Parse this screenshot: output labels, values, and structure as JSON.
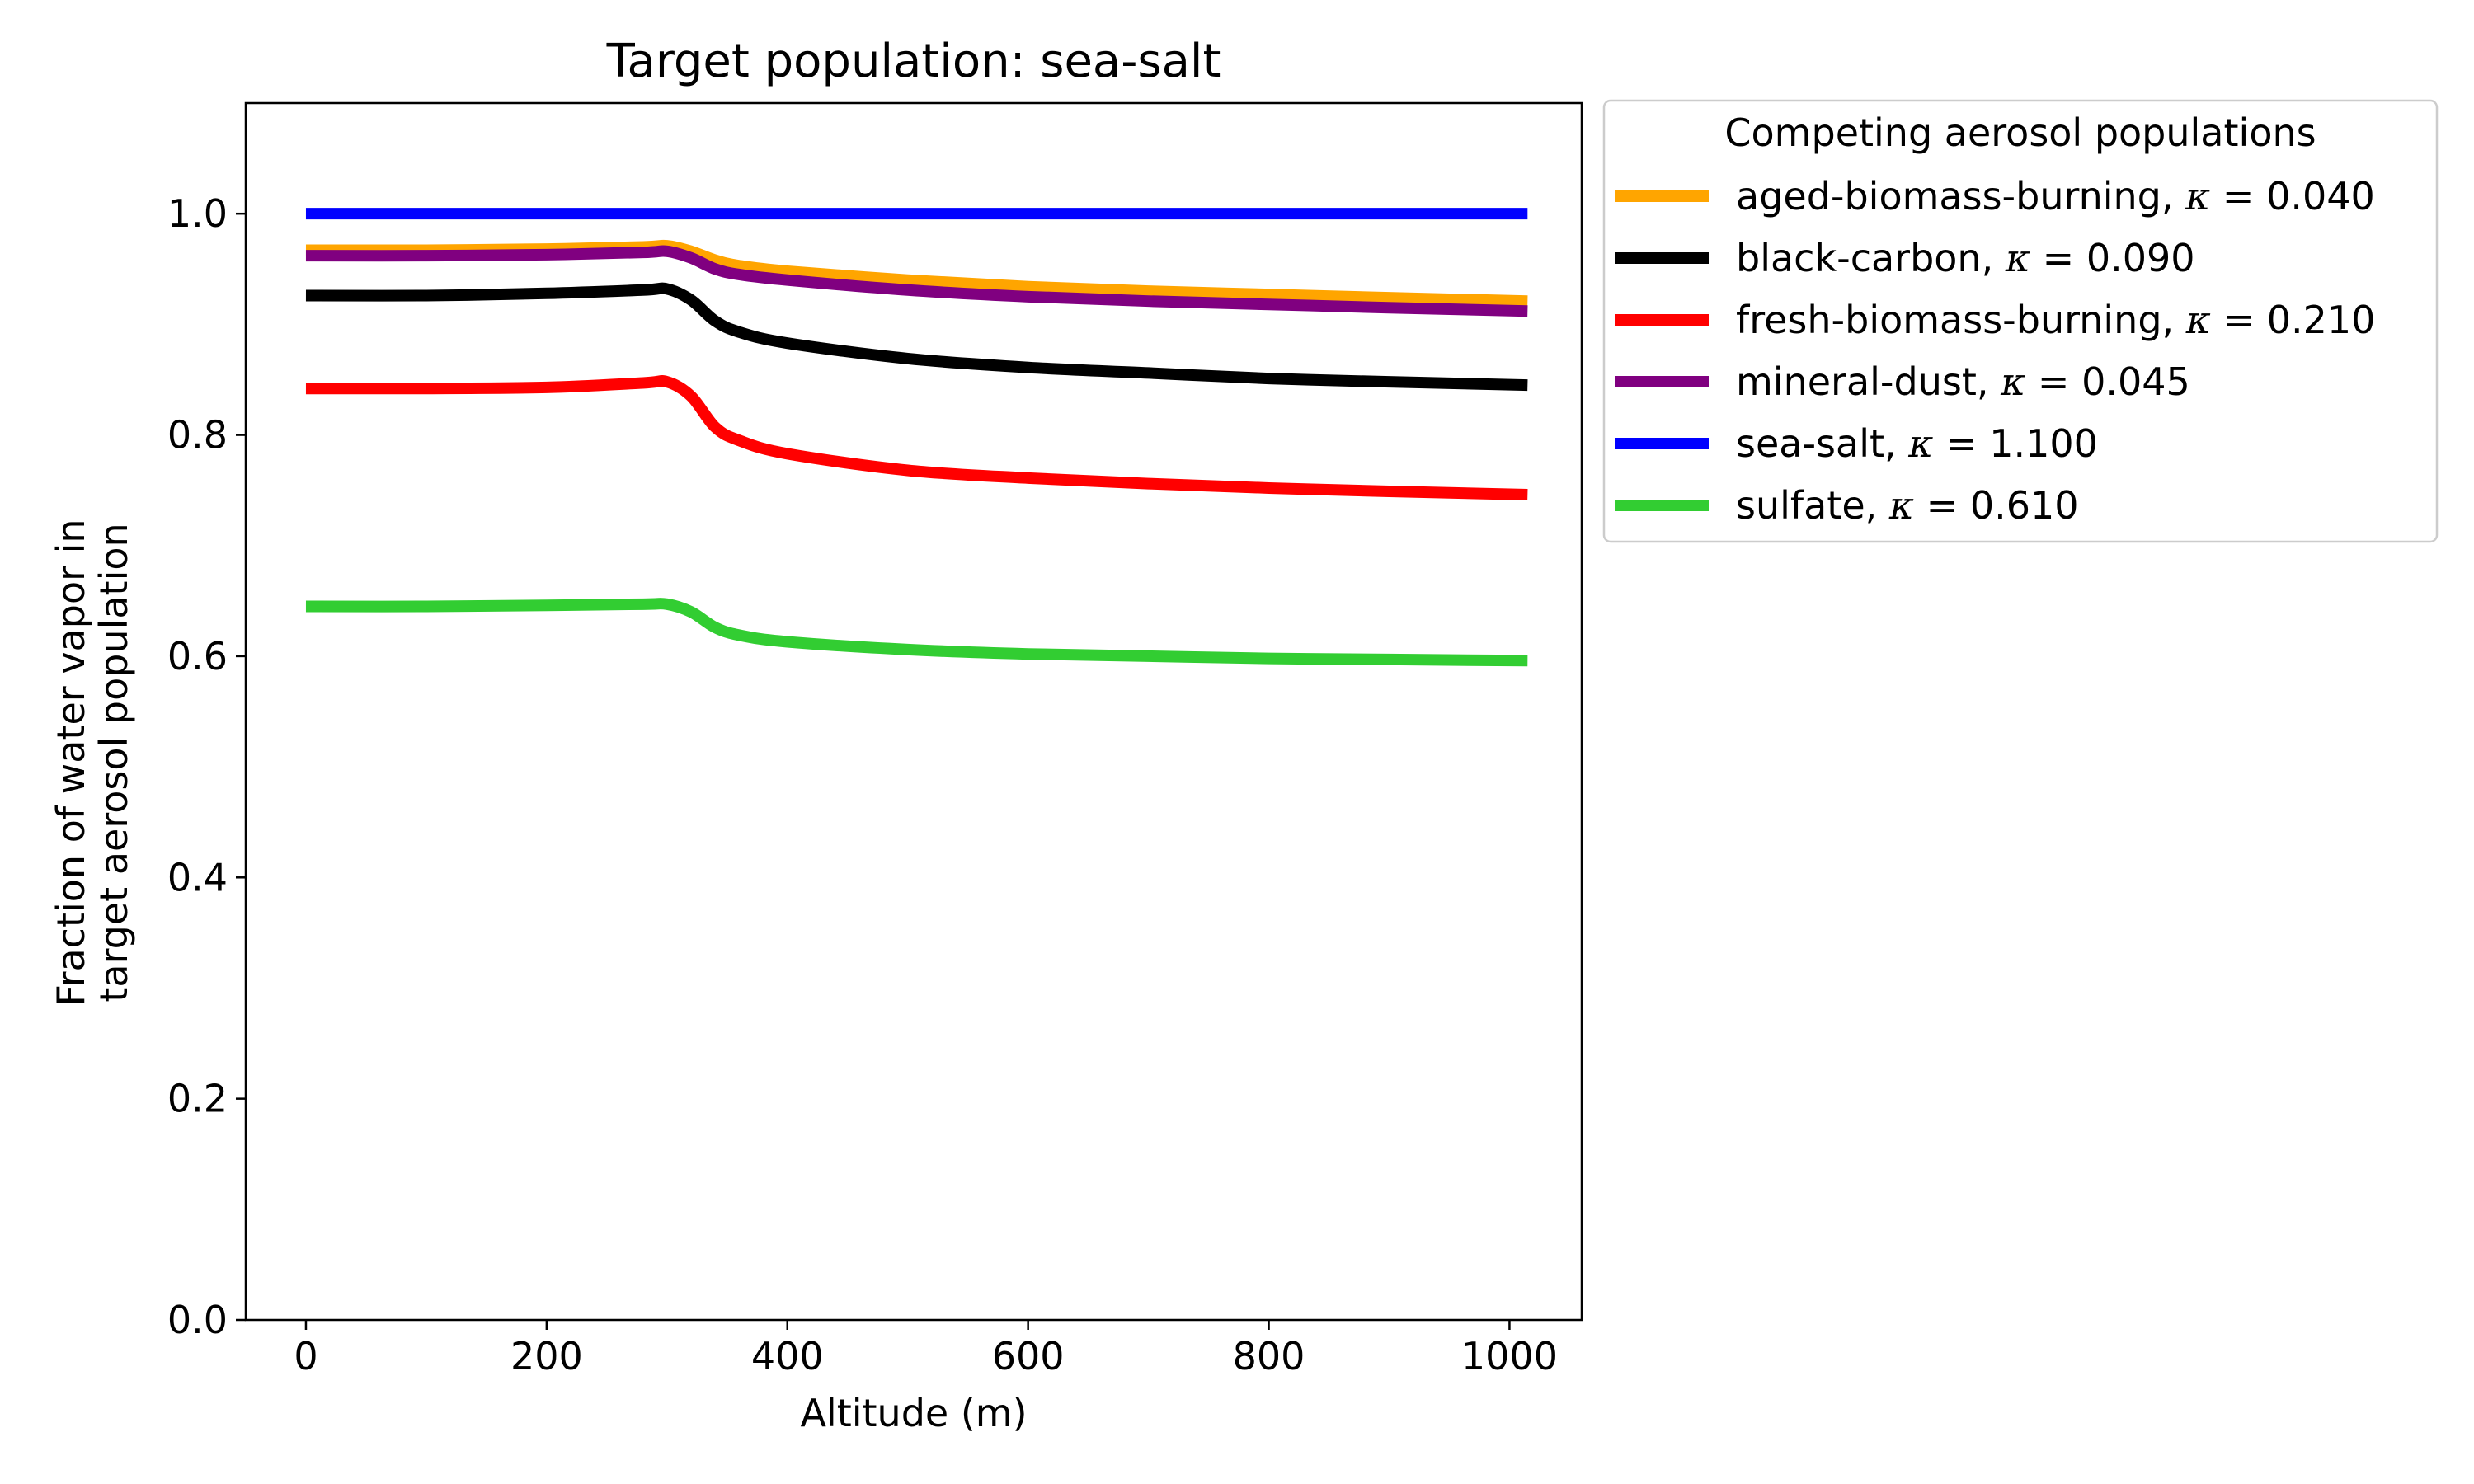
{
  "chart_data": {
    "type": "line",
    "title": "Target population: sea-salt",
    "xlabel": "Altitude (m)",
    "ylabel_lines": [
      "Fraction of water vapor in",
      "target aerosol population"
    ],
    "xlim": [
      -50,
      1060
    ],
    "ylim": [
      0.0,
      1.1
    ],
    "xticks": [
      {
        "value": 0,
        "label": "0"
      },
      {
        "value": 200,
        "label": "200"
      },
      {
        "value": 400,
        "label": "400"
      },
      {
        "value": 600,
        "label": "600"
      },
      {
        "value": 800,
        "label": "800"
      },
      {
        "value": 1000,
        "label": "1000"
      }
    ],
    "yticks": [
      {
        "value": 0.0,
        "label": "0.0"
      },
      {
        "value": 0.2,
        "label": "0.2"
      },
      {
        "value": 0.4,
        "label": "0.4"
      },
      {
        "value": 0.6,
        "label": "0.6"
      },
      {
        "value": 0.8,
        "label": "0.8"
      },
      {
        "value": 1.0,
        "label": "1.0"
      }
    ],
    "legend": {
      "title": "Competing aerosol populations",
      "location": "outside upper right"
    },
    "x": [
      0,
      100,
      200,
      280,
      300,
      320,
      340,
      360,
      400,
      500,
      600,
      700,
      800,
      900,
      1015
    ],
    "series": [
      {
        "name": "aged-biomass-burning",
        "kappa": "0.040",
        "color": "#ffa500",
        "values": [
          0.967,
          0.967,
          0.968,
          0.97,
          0.971,
          0.966,
          0.958,
          0.953,
          0.948,
          0.94,
          0.934,
          0.93,
          0.927,
          0.924,
          0.921
        ]
      },
      {
        "name": "black-carbon",
        "kappa": "0.090",
        "color": "#000000",
        "values": [
          0.926,
          0.926,
          0.928,
          0.931,
          0.932,
          0.922,
          0.903,
          0.893,
          0.883,
          0.869,
          0.861,
          0.856,
          0.851,
          0.848,
          0.845
        ]
      },
      {
        "name": "fresh-biomass-burning",
        "kappa": "0.210",
        "color": "#ff0000",
        "values": [
          0.842,
          0.842,
          0.843,
          0.847,
          0.848,
          0.835,
          0.807,
          0.795,
          0.783,
          0.768,
          0.761,
          0.756,
          0.752,
          0.749,
          0.746
        ]
      },
      {
        "name": "mineral-dust",
        "kappa": "0.045",
        "color": "#800080",
        "values": [
          0.962,
          0.962,
          0.963,
          0.965,
          0.966,
          0.96,
          0.95,
          0.945,
          0.94,
          0.931,
          0.925,
          0.921,
          0.918,
          0.915,
          0.912
        ]
      },
      {
        "name": "sea-salt",
        "kappa": "1.100",
        "color": "#0000ff",
        "values": [
          1.0,
          1.0,
          1.0,
          1.0,
          1.0,
          1.0,
          1.0,
          1.0,
          1.0,
          1.0,
          1.0,
          1.0,
          1.0,
          1.0,
          1.0
        ]
      },
      {
        "name": "sulfate",
        "kappa": "0.610",
        "color": "#32cd32",
        "values": [
          0.645,
          0.645,
          0.646,
          0.647,
          0.647,
          0.64,
          0.626,
          0.619,
          0.613,
          0.606,
          0.602,
          0.6,
          0.598,
          0.597,
          0.596
        ]
      }
    ],
    "draw_order": [
      4,
      0,
      3,
      1,
      2,
      5
    ]
  }
}
